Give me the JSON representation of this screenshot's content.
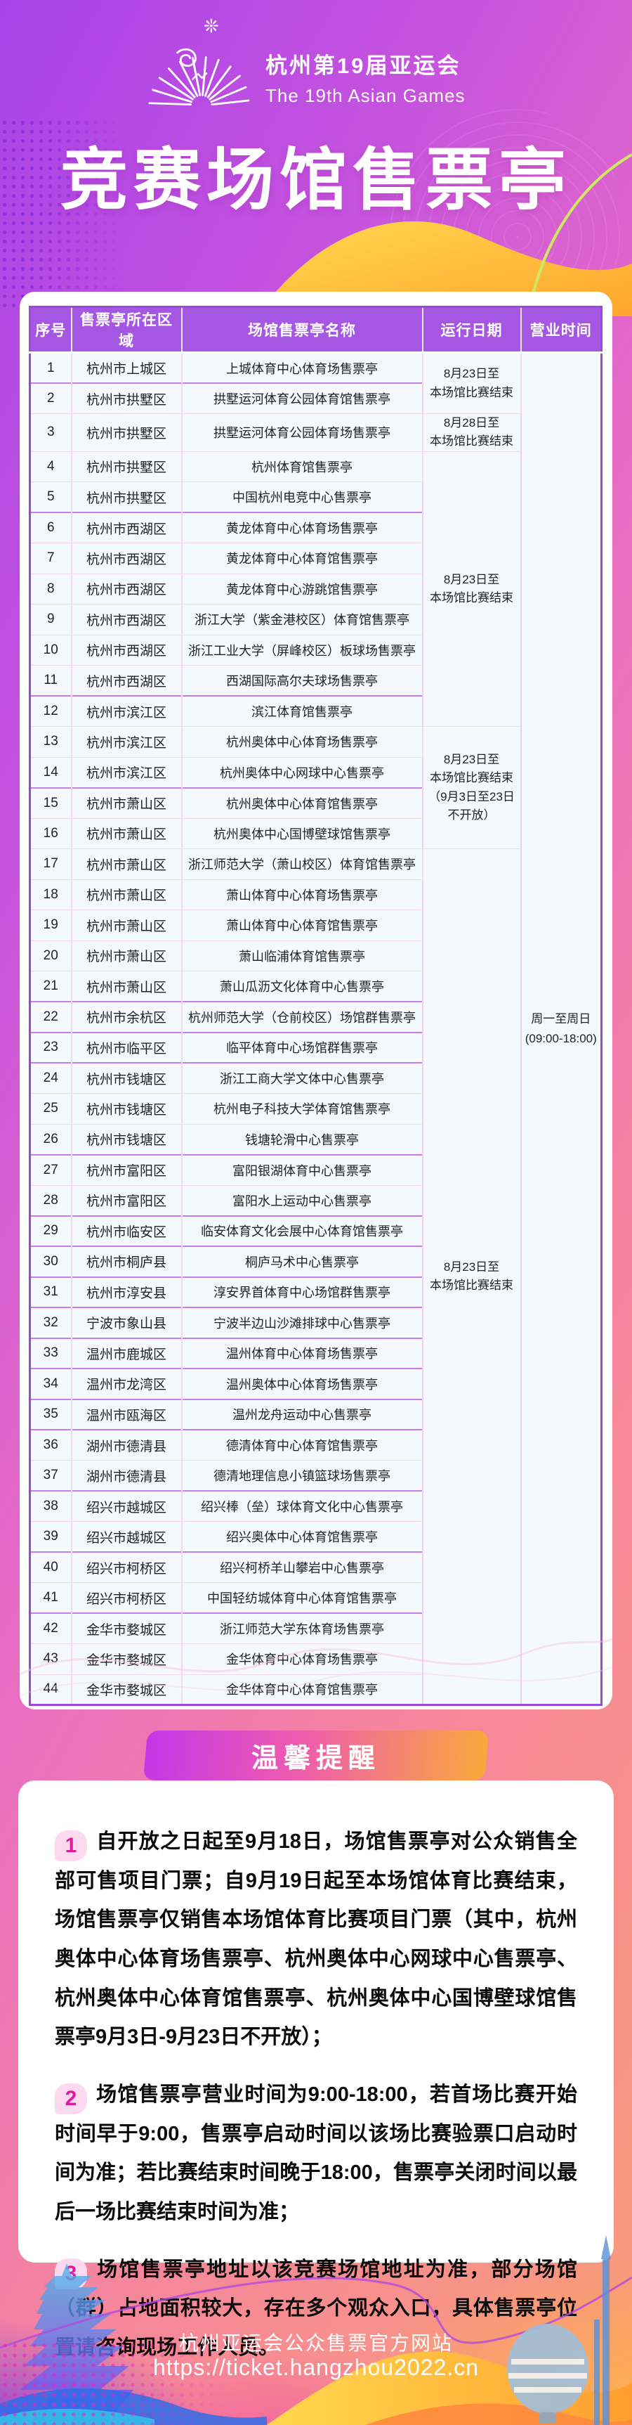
{
  "colors": {
    "header_purple": "#a557e3",
    "table_border": "#9a49da",
    "row_bg": "#f3f9fc",
    "row_divider": "#f3d9f1",
    "group_divider": "#c77ee9",
    "badge_grad_left": "#c437e8",
    "badge_grad_mid": "#ee5cae",
    "badge_grad_right": "#f9a93c",
    "notice_num_bg": "#fcd9ef",
    "notice_num_color": "#e0199e"
  },
  "header": {
    "sparkle": "❊",
    "brand_cn": "杭州第19届亚运会",
    "brand_en": "The 19th Asian Games",
    "title": "竞赛场馆售票亭"
  },
  "table": {
    "columns": [
      "序号",
      "售票亭所在区域",
      "场馆售票亭名称",
      "运行日期",
      "营业时间"
    ],
    "hours": "周一至周日\n(09:00-18:00)",
    "date_groups": [
      {
        "start": 1,
        "end": 2,
        "text": "8月23日至\n本场馆比赛结束"
      },
      {
        "start": 3,
        "end": 3,
        "text": "8月28日至\n本场馆比赛结束"
      },
      {
        "start": 4,
        "end": 12,
        "text": "8月23日至\n本场馆比赛结束"
      },
      {
        "start": 13,
        "end": 16,
        "text": "8月23日至\n本场馆比赛结束\n（9月3日至23日\n不开放）"
      },
      {
        "start": 17,
        "end": 44,
        "text": "8月23日至\n本场馆比赛结束"
      }
    ],
    "rows": [
      {
        "no": "1",
        "district": "杭州市上城区",
        "venue": "上城体育中心体育场售票亭"
      },
      {
        "no": "2",
        "district": "杭州市拱墅区",
        "venue": "拱墅运河体育公园体育馆售票亭"
      },
      {
        "no": "3",
        "district": "杭州市拱墅区",
        "venue": "拱墅运河体育公园体育场售票亭"
      },
      {
        "no": "4",
        "district": "杭州市拱墅区",
        "venue": "杭州体育馆售票亭"
      },
      {
        "no": "5",
        "district": "杭州市拱墅区",
        "venue": "中国杭州电竞中心售票亭"
      },
      {
        "no": "6",
        "district": "杭州市西湖区",
        "venue": "黄龙体育中心体育场售票亭"
      },
      {
        "no": "7",
        "district": "杭州市西湖区",
        "venue": "黄龙体育中心体育馆售票亭"
      },
      {
        "no": "8",
        "district": "杭州市西湖区",
        "venue": "黄龙体育中心游跳馆售票亭"
      },
      {
        "no": "9",
        "district": "杭州市西湖区",
        "venue": "浙江大学（紫金港校区）体育馆售票亭"
      },
      {
        "no": "10",
        "district": "杭州市西湖区",
        "venue": "浙江工业大学（屏峰校区）板球场售票亭"
      },
      {
        "no": "11",
        "district": "杭州市西湖区",
        "venue": "西湖国际高尔夫球场售票亭"
      },
      {
        "no": "12",
        "district": "杭州市滨江区",
        "venue": "滨江体育馆售票亭"
      },
      {
        "no": "13",
        "district": "杭州市滨江区",
        "venue": "杭州奥体中心体育场售票亭"
      },
      {
        "no": "14",
        "district": "杭州市滨江区",
        "venue": "杭州奥体中心网球中心售票亭"
      },
      {
        "no": "15",
        "district": "杭州市萧山区",
        "venue": "杭州奥体中心体育馆售票亭"
      },
      {
        "no": "16",
        "district": "杭州市萧山区",
        "venue": "杭州奥体中心国博壁球馆售票亭"
      },
      {
        "no": "17",
        "district": "杭州市萧山区",
        "venue": "浙江师范大学（萧山校区）体育馆售票亭"
      },
      {
        "no": "18",
        "district": "杭州市萧山区",
        "venue": "萧山体育中心体育场售票亭"
      },
      {
        "no": "19",
        "district": "杭州市萧山区",
        "venue": "萧山体育中心体育馆售票亭"
      },
      {
        "no": "20",
        "district": "杭州市萧山区",
        "venue": "萧山临浦体育馆售票亭"
      },
      {
        "no": "21",
        "district": "杭州市萧山区",
        "venue": "萧山瓜沥文化体育中心售票亭"
      },
      {
        "no": "22",
        "district": "杭州市余杭区",
        "venue": "杭州师范大学（仓前校区）场馆群售票亭"
      },
      {
        "no": "23",
        "district": "杭州市临平区",
        "venue": "临平体育中心场馆群售票亭"
      },
      {
        "no": "24",
        "district": "杭州市钱塘区",
        "venue": "浙江工商大学文体中心售票亭"
      },
      {
        "no": "25",
        "district": "杭州市钱塘区",
        "venue": "杭州电子科技大学体育馆售票亭"
      },
      {
        "no": "26",
        "district": "杭州市钱塘区",
        "venue": "钱塘轮滑中心售票亭"
      },
      {
        "no": "27",
        "district": "杭州市富阳区",
        "venue": "富阳银湖体育中心售票亭"
      },
      {
        "no": "28",
        "district": "杭州市富阳区",
        "venue": "富阳水上运动中心售票亭"
      },
      {
        "no": "29",
        "district": "杭州市临安区",
        "venue": "临安体育文化会展中心体育馆售票亭"
      },
      {
        "no": "30",
        "district": "杭州市桐庐县",
        "venue": "桐庐马术中心售票亭"
      },
      {
        "no": "31",
        "district": "杭州市淳安县",
        "venue": "淳安界首体育中心场馆群售票亭"
      },
      {
        "no": "32",
        "district": "宁波市象山县",
        "venue": "宁波半边山沙滩排球中心售票亭"
      },
      {
        "no": "33",
        "district": "温州市鹿城区",
        "venue": "温州体育中心体育场售票亭"
      },
      {
        "no": "34",
        "district": "温州市龙湾区",
        "venue": "温州奥体中心体育场售票亭"
      },
      {
        "no": "35",
        "district": "温州市瓯海区",
        "venue": "温州龙舟运动中心售票亭"
      },
      {
        "no": "36",
        "district": "湖州市德清县",
        "venue": "德清体育中心体育馆售票亭"
      },
      {
        "no": "37",
        "district": "湖州市德清县",
        "venue": "德清地理信息小镇篮球场售票亭"
      },
      {
        "no": "38",
        "district": "绍兴市越城区",
        "venue": "绍兴棒（垒）球体育文化中心售票亭"
      },
      {
        "no": "39",
        "district": "绍兴市越城区",
        "venue": "绍兴奥体中心体育馆售票亭"
      },
      {
        "no": "40",
        "district": "绍兴市柯桥区",
        "venue": "绍兴柯桥羊山攀岩中心售票亭"
      },
      {
        "no": "41",
        "district": "绍兴市柯桥区",
        "venue": "中国轻纺城体育中心体育馆售票亭"
      },
      {
        "no": "42",
        "district": "金华市婺城区",
        "venue": "浙江师范大学东体育场售票亭"
      },
      {
        "no": "43",
        "district": "金华市婺城区",
        "venue": "金华体育中心体育场售票亭"
      },
      {
        "no": "44",
        "district": "金华市婺城区",
        "venue": "金华体育中心体育馆售票亭"
      }
    ]
  },
  "notice": {
    "title": "温馨提醒",
    "items": [
      {
        "num": "1",
        "text": "自开放之日起至9月18日，场馆售票亭对公众销售全部可售项目门票；自9月19日起至本场馆体育比赛结束，场馆售票亭仅销售本场馆体育比赛项目门票（其中，杭州奥体中心体育场售票亭、杭州奥体中心网球中心售票亭、杭州奥体中心体育馆售票亭、杭州奥体中心国博壁球馆售票亭9月3日-9月23日不开放）；"
      },
      {
        "num": "2",
        "text": "场馆售票亭营业时间为9:00-18:00，若首场比赛开始时间早于9:00，售票亭启动时间以该场比赛验票口启动时间为准；若比赛结束时间晚于18:00，售票亭关闭时间以最后一场比赛结束时间为准；"
      },
      {
        "num": "3",
        "text": "场馆售票亭地址以该竞赛场馆地址为准，部分场馆（群）占地面积较大，存在多个观众入口，具体售票亭位置请咨询现场工作人员。"
      }
    ]
  },
  "footer": {
    "line1": "杭州亚运会公众售票官方网站",
    "line2": "https://ticket.hangzhou2022.cn"
  }
}
